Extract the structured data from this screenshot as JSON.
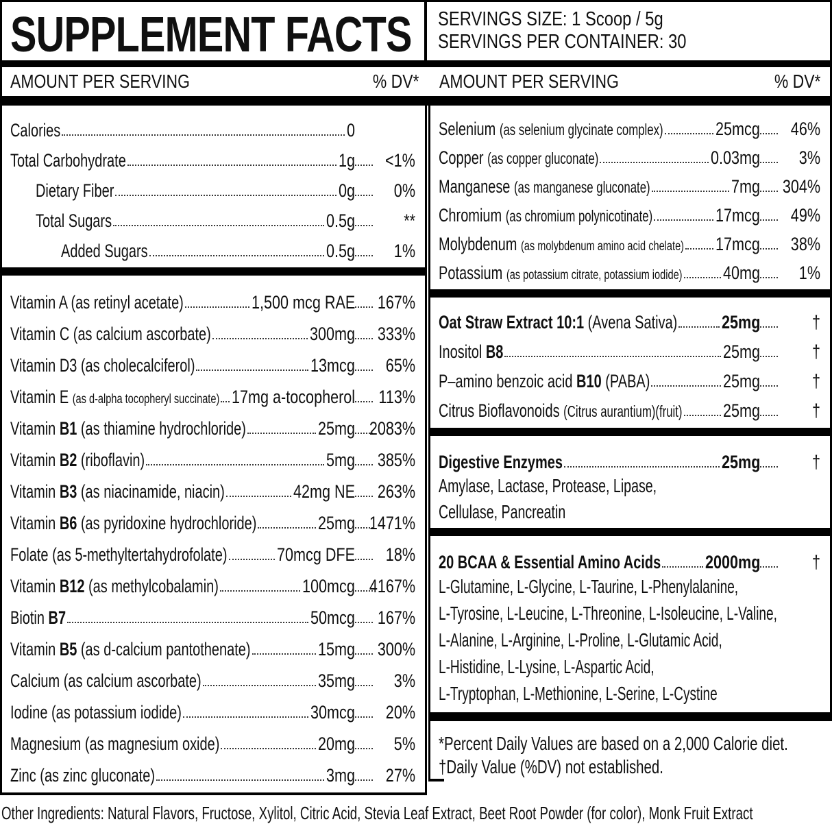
{
  "header": {
    "title": "SUPPLEMENT FACTS",
    "serving_size": "SERVINGS SIZE: 1 Scoop / 5g",
    "servings_per_container": "SERVINGS PER CONTAINER: 30"
  },
  "columns_header": {
    "left": {
      "amount": "AMOUNT PER SERVING",
      "dv": "% DV*"
    },
    "right": {
      "amount": "AMOUNT PER SERVING",
      "dv": "% DV*"
    }
  },
  "left": {
    "macros": [
      {
        "parts": [
          {
            "t": "Calories"
          }
        ],
        "amt": "0",
        "pct": ""
      },
      {
        "parts": [
          {
            "t": "Total Carbohydrate"
          }
        ],
        "amt": "1g",
        "pct": "<1%"
      },
      {
        "parts": [
          {
            "t": "Dietary Fiber"
          }
        ],
        "amt": "0g",
        "pct": "0%",
        "ind": 1
      },
      {
        "parts": [
          {
            "t": "Total Sugars"
          }
        ],
        "amt": "0.5g",
        "pct": "**",
        "ind": 1
      },
      {
        "parts": [
          {
            "t": "Added Sugars"
          }
        ],
        "amt": "0.5g",
        "pct": "1%",
        "ind": 2
      }
    ],
    "vitamins": [
      {
        "parts": [
          {
            "t": "Vitamin A (as retinyl acetate)"
          }
        ],
        "amt": "1,500 mcg RAE",
        "pct": "167%"
      },
      {
        "parts": [
          {
            "t": "Vitamin C (as calcium ascorbate)"
          }
        ],
        "amt": "300mg",
        "pct": "333%"
      },
      {
        "parts": [
          {
            "t": "Vitamin D3 (as cholecalciferol)"
          }
        ],
        "amt": "13mcg",
        "pct": "65%"
      },
      {
        "parts": [
          {
            "t": "Vitamin E "
          },
          {
            "t": "(as d-alpha tocopheryl succinate)",
            "c": "xs"
          }
        ],
        "amt": "17mg a-tocopherol",
        "pct": "113%"
      },
      {
        "parts": [
          {
            "t": "Vitamin "
          },
          {
            "t": "B1",
            "c": "b"
          },
          {
            "t": " (as thiamine hydrochloride)"
          }
        ],
        "amt": "25mg",
        "pct": "2083%"
      },
      {
        "parts": [
          {
            "t": "Vitamin "
          },
          {
            "t": "B2",
            "c": "b"
          },
          {
            "t": " (riboflavin)"
          }
        ],
        "amt": "5mg",
        "pct": "385%"
      },
      {
        "parts": [
          {
            "t": "Vitamin "
          },
          {
            "t": "B3",
            "c": "b"
          },
          {
            "t": " (as niacinamide, niacin)"
          }
        ],
        "amt": "42mg NE",
        "pct": "263%"
      },
      {
        "parts": [
          {
            "t": "Vitamin "
          },
          {
            "t": "B6",
            "c": "b"
          },
          {
            "t": " (as pyridoxine hydrochloride)"
          }
        ],
        "amt": "25mg",
        "pct": "1471%"
      },
      {
        "parts": [
          {
            "t": "Folate (as 5-methyltertahydrofolate)"
          }
        ],
        "amt": "70mcg DFE",
        "pct": "18%"
      },
      {
        "parts": [
          {
            "t": "Vitamin "
          },
          {
            "t": "B12",
            "c": "b"
          },
          {
            "t": " (as methylcobalamin)"
          }
        ],
        "amt": "100mcg",
        "pct": "4167%"
      },
      {
        "parts": [
          {
            "t": "Biotin "
          },
          {
            "t": "B7",
            "c": "b"
          }
        ],
        "amt": "50mcg",
        "pct": "167%"
      },
      {
        "parts": [
          {
            "t": "Vitamin "
          },
          {
            "t": "B5",
            "c": "b"
          },
          {
            "t": " (as d-calcium pantothenate)"
          }
        ],
        "amt": "15mg",
        "pct": "300%"
      },
      {
        "parts": [
          {
            "t": "Calcium (as calcium ascorbate)"
          }
        ],
        "amt": "35mg",
        "pct": "3%"
      },
      {
        "parts": [
          {
            "t": "Iodine (as potassium iodide)"
          }
        ],
        "amt": "30mcg",
        "pct": "20%"
      },
      {
        "parts": [
          {
            "t": "Magnesium (as magnesium oxide)"
          }
        ],
        "amt": "20mg",
        "pct": "5%"
      },
      {
        "parts": [
          {
            "t": "Zinc (as zinc gluconate)"
          }
        ],
        "amt": "3mg",
        "pct": "27%"
      }
    ]
  },
  "right": {
    "minerals": [
      {
        "parts": [
          {
            "t": "Selenium "
          },
          {
            "t": "(as selenium glycinate complex)",
            "c": "s"
          }
        ],
        "amt": "25mcg",
        "pct": "46%"
      },
      {
        "parts": [
          {
            "t": "Copper "
          },
          {
            "t": "(as copper gluconate)",
            "c": "s"
          }
        ],
        "amt": "0.03mg",
        "pct": "3%"
      },
      {
        "parts": [
          {
            "t": "Manganese "
          },
          {
            "t": "(as manganese gluconate)",
            "c": "s"
          }
        ],
        "amt": "7mg",
        "pct": "304%"
      },
      {
        "parts": [
          {
            "t": "Chromium "
          },
          {
            "t": "(as chromium polynicotinate)",
            "c": "s"
          }
        ],
        "amt": "17mcg",
        "pct": "49%"
      },
      {
        "parts": [
          {
            "t": "Molybdenum "
          },
          {
            "t": "(as molybdenum amino acid chelate)",
            "c": "xs"
          }
        ],
        "amt": "17mcg",
        "pct": "38%"
      },
      {
        "parts": [
          {
            "t": "Potassium "
          },
          {
            "t": "(as potassium citrate, potassium iodide)",
            "c": "xs"
          }
        ],
        "amt": "40mg",
        "pct": "1%"
      }
    ],
    "botanicals": [
      {
        "parts": [
          {
            "t": "Oat Straw Extract 10:1",
            "c": "b"
          },
          {
            "t": " (Avena Sativa)"
          }
        ],
        "amt": "25mg",
        "ab": true,
        "pct": "†"
      },
      {
        "parts": [
          {
            "t": "Inositol "
          },
          {
            "t": "B8",
            "c": "b"
          }
        ],
        "amt": "25mg",
        "pct": "†"
      },
      {
        "parts": [
          {
            "t": "P–amino benzoic acid "
          },
          {
            "t": "B10",
            "c": "b"
          },
          {
            "t": " (PABA)"
          }
        ],
        "amt": "25mg",
        "pct": "†"
      },
      {
        "parts": [
          {
            "t": "Citrus Bioflavonoids "
          },
          {
            "t": "(Citrus aurantium)(fruit)",
            "c": "s"
          }
        ],
        "amt": "25mg",
        "pct": "†"
      }
    ],
    "digestive": {
      "rows": [
        {
          "parts": [
            {
              "t": "Digestive Enzymes",
              "c": "b"
            }
          ],
          "amt": "25mg",
          "ab": true,
          "pct": "†"
        }
      ],
      "lines": [
        "Amylase, Lactase, Protease, Lipase,",
        "Cellulase, Pancreatin"
      ]
    },
    "bcaa": {
      "rows": [
        {
          "parts": [
            {
              "t": "20 BCAA & Essential Amino Acids",
              "c": "b"
            }
          ],
          "amt": "2000mg",
          "ab": true,
          "pct": "†"
        }
      ],
      "lines": [
        "L-Glutamine, L-Glycine, L-Taurine, L-Phenylalanine,",
        "L-Tyrosine, L-Leucine, L-Threonine, L-Isoleucine,  L-Valine,",
        "L-Alanine, L-Arginine, L-Proline, L-Glutamic Acid,",
        "L-Histidine, L-Lysine, L-Aspartic Acid,",
        "L-Tryptophan, L-Methionine, L-Serine, L-Cystine"
      ]
    }
  },
  "footnotes": {
    "line1": "*Percent Daily Values are based on a 2,000 Calorie diet.",
    "line2": "†Daily Value (%DV) not established."
  },
  "other_ingredients": "Other Ingredients: Natural Flavors, Fructose, Xylitol, Citric Acid, Stevia Leaf Extract, Beet Root Powder (for color), Monk Fruit Extract",
  "colors": {
    "text": "#101010",
    "border": "#000000",
    "background": "#ffffff"
  }
}
